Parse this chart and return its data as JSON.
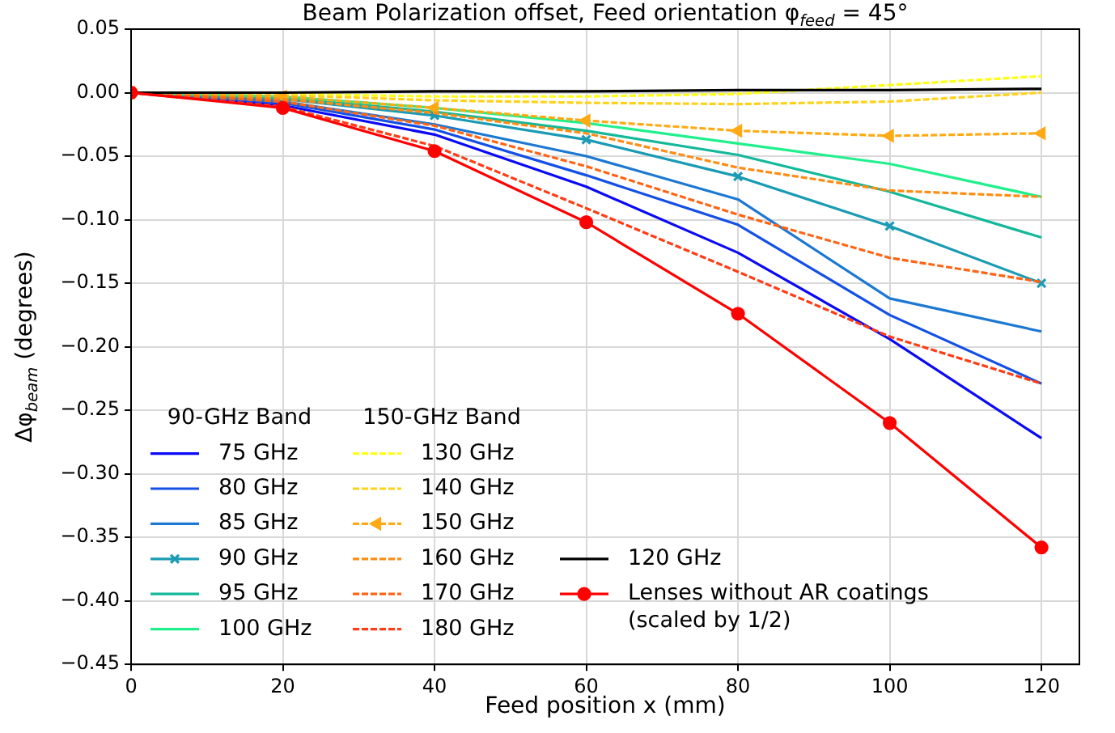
{
  "chart_data": {
    "type": "line",
    "title": "Beam Polarization offset, Feed orientation φ$_{feed}$ = 45°",
    "xlabel": "Feed position x (mm)",
    "ylabel": "Δφ$_{beam}$ (degrees)",
    "annotations": [
      "90-GHz Band",
      "150-GHz Band"
    ],
    "x": [
      0,
      20,
      40,
      60,
      80,
      100,
      120
    ],
    "xlim": [
      0,
      125
    ],
    "xticks": [
      0,
      20,
      40,
      60,
      80,
      100,
      120
    ],
    "ylim": [
      -0.45,
      0.05
    ],
    "yticks": [
      {
        "value": 0.05,
        "label": "0.05"
      },
      {
        "value": 0,
        "label": "0.00"
      },
      {
        "value": -0.05,
        "label": "−0.05"
      },
      {
        "value": -0.1,
        "label": "−0.10"
      },
      {
        "value": -0.15,
        "label": "−0.15"
      },
      {
        "value": -0.2,
        "label": "−0.20"
      },
      {
        "value": -0.25,
        "label": "−0.25"
      },
      {
        "value": -0.3,
        "label": "−0.30"
      },
      {
        "value": -0.35,
        "label": "−0.35"
      },
      {
        "value": -0.4,
        "label": "−0.40"
      },
      {
        "value": -0.45,
        "label": "−0.45"
      }
    ],
    "grid": true,
    "legend": "bottom left",
    "marker": "none",
    "line_style": "solid",
    "series": [
      {
        "name": "75 GHz",
        "color": "#0a0af5",
        "values": [
          0,
          -0.01,
          -0.033,
          -0.074,
          -0.126,
          -0.194,
          -0.272
        ]
      },
      {
        "name": "80 GHz",
        "color": "#1450e6",
        "values": [
          0,
          -0.008,
          -0.029,
          -0.065,
          -0.104,
          -0.175,
          -0.229
        ]
      },
      {
        "name": "85 GHz",
        "color": "#1c78d2",
        "values": [
          0,
          -0.007,
          -0.025,
          -0.05,
          -0.084,
          -0.162,
          -0.188
        ]
      },
      {
        "name": "90 GHz",
        "color": "#1a9bb4",
        "marker": "cross",
        "values": [
          0,
          -0.005,
          -0.018,
          -0.037,
          -0.066,
          -0.105,
          -0.15
        ]
      },
      {
        "name": "95 GHz",
        "color": "#14b89a",
        "values": [
          0,
          -0.004,
          -0.015,
          -0.03,
          -0.049,
          -0.078,
          -0.114
        ]
      },
      {
        "name": "100 GHz",
        "color": "#20f08c",
        "values": [
          0,
          -0.003,
          -0.012,
          -0.024,
          -0.04,
          -0.056,
          -0.082
        ]
      },
      {
        "name": "130 GHz",
        "color": "#ffff14",
        "line_style": "dashed",
        "values": [
          0,
          -0.001,
          -0.003,
          -0.003,
          -0.001,
          0.006,
          0.013
        ]
      },
      {
        "name": "140 GHz",
        "color": "#ffd21a",
        "line_style": "dashed",
        "values": [
          0,
          -0.002,
          -0.006,
          -0.008,
          -0.009,
          -0.007,
          0.0
        ]
      },
      {
        "name": "150 GHz",
        "color": "#ffaa14",
        "line_style": "dashed",
        "marker": "triangle",
        "values": [
          0,
          -0.003,
          -0.012,
          -0.022,
          -0.03,
          -0.034,
          -0.032
        ]
      },
      {
        "name": "160 GHz",
        "color": "#ff8c14",
        "line_style": "dashed",
        "values": [
          0,
          -0.005,
          -0.016,
          -0.032,
          -0.059,
          -0.077,
          -0.082
        ]
      },
      {
        "name": "170 GHz",
        "color": "#ff6414",
        "line_style": "dashed",
        "values": [
          0,
          -0.007,
          -0.026,
          -0.058,
          -0.096,
          -0.13,
          -0.149
        ]
      },
      {
        "name": "180 GHz",
        "color": "#ff3c14",
        "line_style": "dashed",
        "values": [
          0,
          -0.011,
          -0.042,
          -0.091,
          -0.141,
          -0.192,
          -0.229
        ]
      },
      {
        "name": "120 GHz",
        "color": "#000000",
        "values": [
          0,
          0.0,
          0.001,
          0.001,
          0.002,
          0.002,
          0.003
        ]
      },
      {
        "name": "Lenses without AR coatings (scaled by 1/2)",
        "color": "#ff0000",
        "marker": "circle",
        "values": [
          0,
          -0.012,
          -0.046,
          -0.102,
          -0.174,
          -0.26,
          -0.358
        ]
      }
    ]
  }
}
